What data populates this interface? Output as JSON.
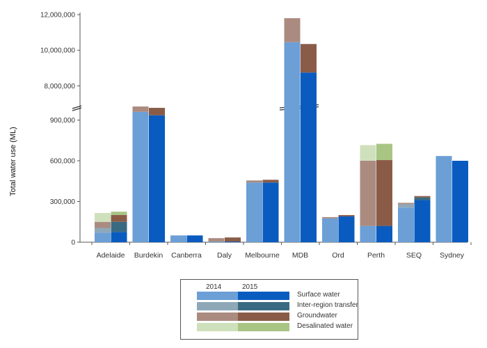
{
  "chart_data": {
    "type": "bar",
    "stacked": true,
    "ylabel": "Total water use (ML)",
    "axis_break": {
      "lower_range": [
        0,
        1000000
      ],
      "upper_range": [
        7000000,
        12000000
      ]
    },
    "lower_ticks": [
      "0",
      "300,000",
      "600,000",
      "900,000"
    ],
    "upper_ticks": [
      "8,000,000",
      "10,000,000",
      "12,000,000"
    ],
    "categories": [
      "Adelaide",
      "Burdekin",
      "Canberra",
      "Daly",
      "Melbourne",
      "MDB",
      "Ord",
      "Perth",
      "SEQ",
      "Sydney"
    ],
    "years": [
      "2014",
      "2015"
    ],
    "components": [
      "Surface water",
      "Inter-region transfer",
      "Groundwater",
      "Desalinated water"
    ],
    "series": [
      {
        "name": "Surface water",
        "year": "2014",
        "values": [
          70000,
          960000,
          50000,
          5000,
          440000,
          10450000,
          175000,
          120000,
          255000,
          635000
        ]
      },
      {
        "name": "Inter-region transfer",
        "year": "2014",
        "values": [
          35000,
          0,
          0,
          0,
          0,
          0,
          0,
          0,
          25000,
          0
        ]
      },
      {
        "name": "Groundwater",
        "year": "2014",
        "values": [
          45000,
          40000,
          0,
          25000,
          15000,
          1350000,
          10000,
          480000,
          10000,
          0
        ]
      },
      {
        "name": "Desalinated water",
        "year": "2014",
        "values": [
          65000,
          0,
          0,
          0,
          0,
          0,
          0,
          115000,
          0,
          0
        ]
      },
      {
        "name": "Surface water",
        "year": "2015",
        "values": [
          75000,
          935000,
          50000,
          5000,
          440000,
          8750000,
          190000,
          120000,
          310000,
          600000
        ]
      },
      {
        "name": "Inter-region transfer",
        "year": "2015",
        "values": [
          75000,
          0,
          0,
          0,
          0,
          0,
          0,
          0,
          20000,
          0
        ]
      },
      {
        "name": "Groundwater",
        "year": "2015",
        "values": [
          50000,
          55000,
          0,
          30000,
          20000,
          1600000,
          10000,
          485000,
          10000,
          0
        ]
      },
      {
        "name": "Desalinated water",
        "year": "2015",
        "values": [
          25000,
          0,
          0,
          0,
          0,
          0,
          0,
          120000,
          0,
          0
        ]
      }
    ]
  },
  "colors": {
    "2014": {
      "Surface water": "#6b9fd6",
      "Inter-region transfer": "#8fa8b8",
      "Groundwater": "#ab8b80",
      "Desalinated water": "#cfe0bc"
    },
    "2015": {
      "Surface water": "#0a5bbf",
      "Inter-region transfer": "#3a6a82",
      "Groundwater": "#8a5c48",
      "Desalinated water": "#a8c584"
    }
  },
  "legend": {
    "year_labels": [
      "2014",
      "2015"
    ],
    "items": [
      "Surface water",
      "Inter-region transfer",
      "Groundwater",
      "Desalinated water"
    ]
  }
}
